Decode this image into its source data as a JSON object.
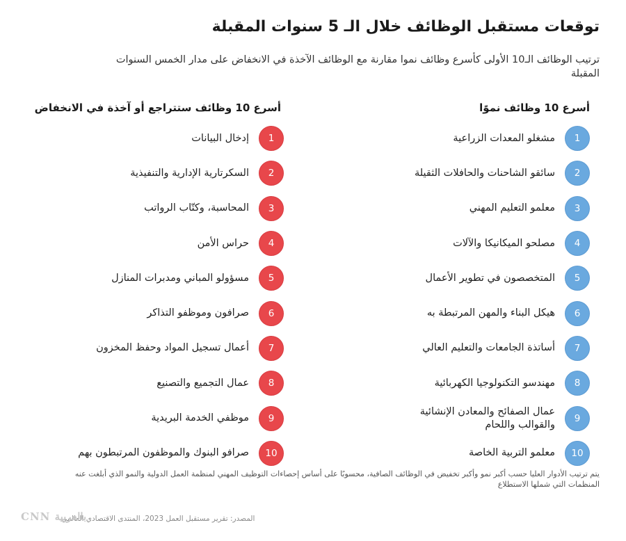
{
  "title": "توقعات مستقبل الوظائف خلال الـ 5 سنوات المقبلة",
  "subtitle": "ترتيب الوظائف الـ10 الأولى كأسرع وظائف نموا مقارنة مع الوظائف الآخذة في الانخفاض على مدار الخمس السنوات المقبلة",
  "growing": {
    "header": "أسرع 10 وظائف نموًا",
    "items": [
      {
        "num": "1",
        "label": "مشغلو المعدات الزراعية"
      },
      {
        "num": "2",
        "label": "سائقو الشاحنات والحافلات الثقيلة"
      },
      {
        "num": "3",
        "label": "معلمو التعليم المهني"
      },
      {
        "num": "4",
        "label": "مصلحو الميكانيكا والآلات"
      },
      {
        "num": "5",
        "label": "المتخصصون في تطوير الأعمال"
      },
      {
        "num": "6",
        "label": "هيكل البناء والمهن المرتبطة به"
      },
      {
        "num": "7",
        "label": "أساتذة الجامعات والتعليم العالي"
      },
      {
        "num": "8",
        "label": "مهندسو التكنولوجيا الكهربائية"
      },
      {
        "num": "9",
        "label": "عمال الصفائح والمعادن الإنشائية والقوالب واللحام"
      },
      {
        "num": "10",
        "label": "معلمو التربية الخاصة"
      }
    ]
  },
  "declining": {
    "header": "أسرع 10 وظائف ستتراجع أو آخذة في الانخفاض",
    "items": [
      {
        "num": "1",
        "label": "إدخال البيانات"
      },
      {
        "num": "2",
        "label": "السكرتارية الإدارية والتنفيذية"
      },
      {
        "num": "3",
        "label": "المحاسبة، وكتّاب الرواتب"
      },
      {
        "num": "4",
        "label": "حراس الأمن"
      },
      {
        "num": "5",
        "label": "مسؤولو المباني ومدبرات المنازل"
      },
      {
        "num": "6",
        "label": "صرافون وموظفو التذاكر"
      },
      {
        "num": "7",
        "label": "أعمال تسجيل المواد وحفظ المخزون"
      },
      {
        "num": "8",
        "label": "عمال التجميع والتصنيع"
      },
      {
        "num": "9",
        "label": "موظفي الخدمة البريدية"
      },
      {
        "num": "10",
        "label": "صرافو البنوك والموظفون المرتبطون بهم"
      }
    ]
  },
  "footnote": "يتم ترتيب الأدوار العليا حسب أكبر نمو وأكبر تخفيض في الوظائف الصافية، محسوبًا على أساس إحصاءات التوظيف المهني لمنظمة العمل الدولية والنمو الذي أبلغت عنه المنظمات التي شملها الاستطلاع",
  "source": "المصدر: تقرير مستقبل العمل 2023، المنتدى الاقتصادي العالمي",
  "logo": "CNN بالعربية",
  "colors": {
    "growing_badge": "#6aa9df",
    "declining_badge": "#e8474b"
  }
}
